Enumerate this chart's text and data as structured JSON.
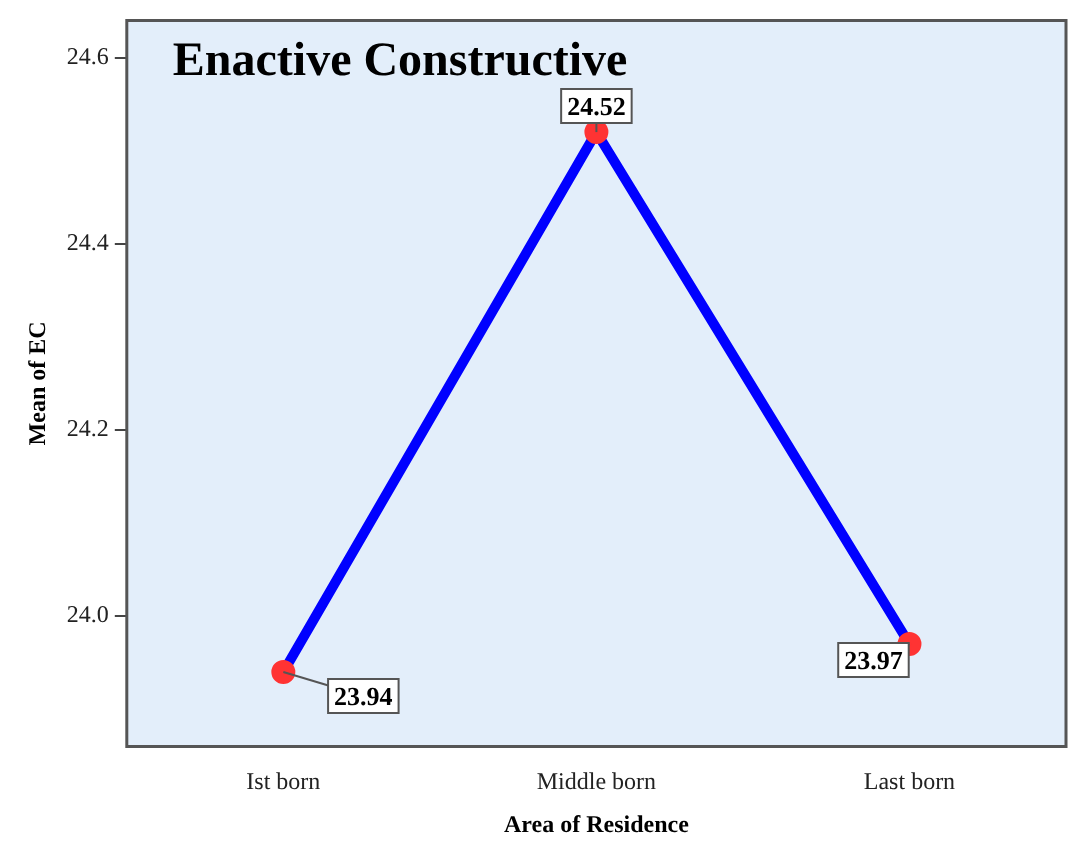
{
  "chart_data": {
    "type": "line",
    "title": "Enactive Constructive",
    "xlabel": "Area of Residence",
    "ylabel": "Mean of EC",
    "categories": [
      "Ist born",
      "Middle born",
      "Last born"
    ],
    "series": [
      {
        "color": "#0000ff",
        "values": [
          23.94,
          24.52,
          23.97
        ]
      }
    ],
    "ylim": [
      23.86,
      24.64
    ],
    "yticks": [
      {
        "value": 24,
        "label": "24.0"
      },
      {
        "value": 24.2,
        "label": "24.2"
      },
      {
        "value": 24.4,
        "label": "24.4"
      },
      {
        "value": 24.6,
        "label": "24.6"
      }
    ],
    "grid": false,
    "legend": false,
    "marker": "circle",
    "line_style": "solid",
    "data_labels": true
  }
}
